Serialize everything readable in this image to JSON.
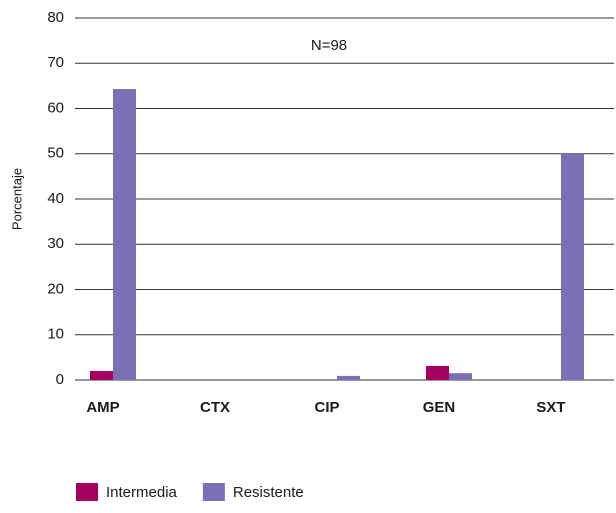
{
  "chart_data": {
    "type": "bar",
    "annotation": "N=98",
    "y_label": "Porcentaje",
    "categories": [
      "AMP",
      "CTX",
      "CIP",
      "GEN",
      "SXT"
    ],
    "series": [
      {
        "name": "Intermedia",
        "color": "#a3005f",
        "values": [
          2,
          0,
          0,
          3.1,
          0
        ]
      },
      {
        "name": "Resistente",
        "color": "#7b6fb6",
        "values": [
          64.3,
          0,
          0.9,
          1.5,
          50
        ]
      }
    ],
    "ylim": [
      0,
      80
    ],
    "yticks": [
      0,
      10,
      20,
      30,
      40,
      50,
      60,
      70,
      80
    ],
    "grid": true,
    "legend": "bottom-left"
  }
}
